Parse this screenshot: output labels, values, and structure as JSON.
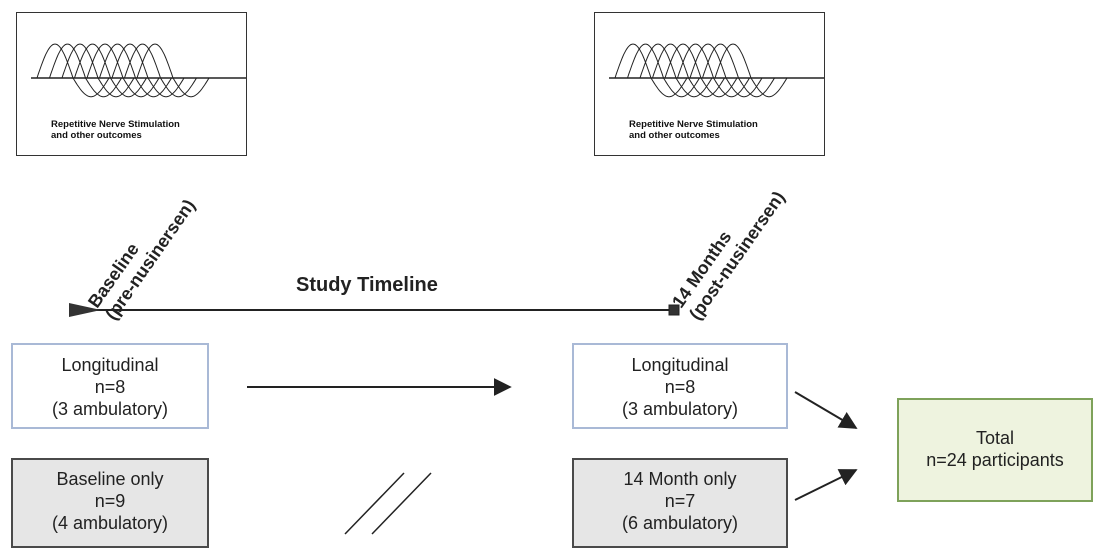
{
  "panels": {
    "left": {
      "caption_line1": "Repetitive Nerve Stimulation",
      "caption_line2": "and other outcomes"
    },
    "right": {
      "caption_line1": "Repetitive Nerve Stimulation",
      "caption_line2": "and other outcomes"
    }
  },
  "timeline": {
    "title": "Study Timeline",
    "start_label_line1": "Baseline",
    "start_label_line2": "(pre-nusinersen)",
    "end_label_line1": "14 Months",
    "end_label_line2": "(post-nusinersen)"
  },
  "boxes": {
    "longitudinal_baseline": {
      "line1": "Longitudinal",
      "line2": "n=8",
      "line3": "(3 ambulatory)"
    },
    "baseline_only": {
      "line1": "Baseline only",
      "line2": "n=9",
      "line3": "(4 ambulatory)"
    },
    "longitudinal_14m": {
      "line1": "Longitudinal",
      "line2": "n=8",
      "line3": "(3 ambulatory)"
    },
    "month14_only": {
      "line1": "14 Month only",
      "line2": "n=7",
      "line3": "(6 ambulatory)"
    },
    "total": {
      "line1": "Total",
      "line2": "n=24 participants"
    }
  },
  "colors": {
    "longitudinal_border": "#a9b9d6",
    "single_border": "#4a4a4a",
    "single_fill": "#e6e6e6",
    "total_border": "#7ea25a",
    "total_fill": "#eef3df"
  }
}
